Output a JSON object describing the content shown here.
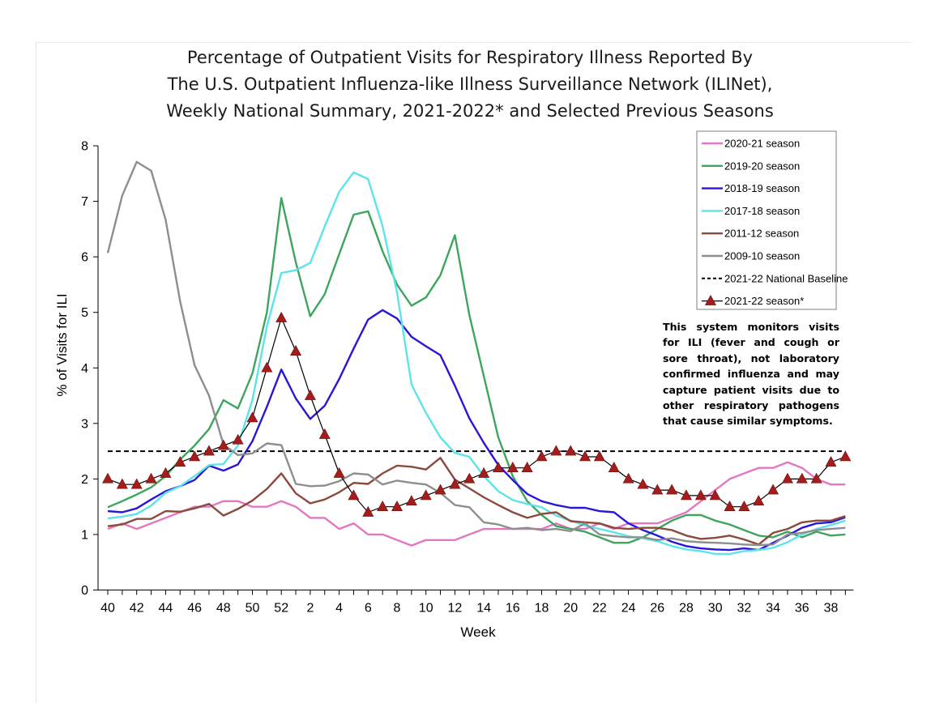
{
  "chart_data": {
    "type": "line",
    "title": [
      "Percentage of Outpatient Visits for Respiratory Illness Reported By",
      "The U.S. Outpatient Influenza-like Illness Surveillance Network (ILINet),",
      "Weekly National Summary, 2021-2022* and Selected Previous Seasons"
    ],
    "xlabel": "Week",
    "ylabel": "% of Visits for ILI",
    "ylim": [
      0,
      8
    ],
    "yticks": [
      "0",
      "1",
      "2",
      "3",
      "4",
      "5",
      "6",
      "7",
      "8"
    ],
    "x": [
      40,
      41,
      42,
      43,
      44,
      45,
      46,
      47,
      48,
      49,
      50,
      51,
      52,
      1,
      2,
      3,
      4,
      5,
      6,
      7,
      8,
      9,
      10,
      11,
      12,
      13,
      14,
      15,
      16,
      17,
      18,
      19,
      20,
      21,
      22,
      23,
      24,
      25,
      26,
      27,
      28,
      29,
      30,
      31,
      32,
      33,
      34,
      35,
      36,
      37,
      38,
      39
    ],
    "xtick_labels": [
      "40",
      "42",
      "44",
      "46",
      "48",
      "50",
      "52",
      "2",
      "4",
      "6",
      "8",
      "10",
      "12",
      "14",
      "16",
      "18",
      "20",
      "22",
      "24",
      "26",
      "28",
      "30",
      "32",
      "34",
      "36",
      "38"
    ],
    "baseline": {
      "name": "2021-22 National Baseline",
      "value": 2.5,
      "color": "#000000"
    },
    "series": [
      {
        "name": "2020-21 season",
        "color": "#e377c2",
        "marker": "none",
        "values": [
          1.1,
          1.2,
          1.1,
          1.2,
          1.3,
          1.4,
          1.5,
          1.5,
          1.6,
          1.6,
          1.5,
          1.5,
          1.6,
          1.5,
          1.3,
          1.3,
          1.1,
          1.2,
          1.0,
          1.0,
          0.9,
          0.8,
          0.9,
          0.9,
          0.9,
          1.0,
          1.1,
          1.1,
          1.1,
          1.1,
          1.1,
          1.2,
          1.1,
          1.1,
          1.2,
          1.1,
          1.2,
          1.2,
          1.2,
          1.3,
          1.4,
          1.6,
          1.8,
          2.0,
          2.1,
          2.2,
          2.2,
          2.3,
          2.2,
          2.0,
          1.9,
          1.9
        ]
      },
      {
        "name": "2019-20 season",
        "color": "#3ea55d",
        "marker": "none",
        "values": [
          1.49,
          1.6,
          1.72,
          1.85,
          2.05,
          2.35,
          2.6,
          2.9,
          3.42,
          3.27,
          3.9,
          5.0,
          7.06,
          5.9,
          4.93,
          5.33,
          6.05,
          6.76,
          6.82,
          6.1,
          5.5,
          5.12,
          5.27,
          5.67,
          6.39,
          4.95,
          3.85,
          2.75,
          2.05,
          1.6,
          1.35,
          1.15,
          1.1,
          1.05,
          0.95,
          0.85,
          0.85,
          0.95,
          1.1,
          1.25,
          1.35,
          1.35,
          1.25,
          1.18,
          1.08,
          0.98,
          0.95,
          1.05,
          0.95,
          1.05,
          0.98,
          1.0
        ]
      },
      {
        "name": "2018-19 season",
        "color": "#2a16d9",
        "marker": "none",
        "values": [
          1.42,
          1.4,
          1.47,
          1.63,
          1.78,
          1.87,
          1.98,
          2.24,
          2.15,
          2.26,
          2.68,
          3.3,
          3.97,
          3.45,
          3.08,
          3.32,
          3.8,
          4.35,
          4.87,
          5.04,
          4.89,
          4.56,
          4.39,
          4.23,
          3.68,
          3.09,
          2.65,
          2.25,
          1.98,
          1.73,
          1.6,
          1.53,
          1.48,
          1.48,
          1.42,
          1.4,
          1.2,
          1.08,
          0.98,
          0.87,
          0.79,
          0.75,
          0.73,
          0.72,
          0.75,
          0.72,
          0.85,
          0.98,
          1.12,
          1.2,
          1.22,
          1.31
        ]
      },
      {
        "name": "2017-18 season",
        "color": "#5de4ea",
        "marker": "none",
        "values": [
          1.29,
          1.32,
          1.37,
          1.52,
          1.75,
          1.87,
          2.05,
          2.25,
          2.27,
          2.6,
          3.42,
          4.75,
          5.71,
          5.76,
          5.89,
          6.55,
          7.17,
          7.52,
          7.4,
          6.55,
          5.36,
          3.7,
          3.19,
          2.75,
          2.47,
          2.4,
          2.05,
          1.78,
          1.62,
          1.55,
          1.49,
          1.34,
          1.25,
          1.16,
          1.1,
          1.04,
          0.97,
          0.93,
          0.88,
          0.79,
          0.73,
          0.7,
          0.65,
          0.65,
          0.7,
          0.72,
          0.76,
          0.86,
          1.0,
          1.1,
          1.17,
          1.25
        ]
      },
      {
        "name": "2011-12 season",
        "color": "#8a4a3d",
        "marker": "none",
        "values": [
          1.15,
          1.18,
          1.28,
          1.28,
          1.42,
          1.41,
          1.47,
          1.55,
          1.34,
          1.46,
          1.61,
          1.82,
          2.1,
          1.74,
          1.56,
          1.63,
          1.76,
          1.93,
          1.91,
          2.1,
          2.24,
          2.22,
          2.17,
          2.38,
          1.99,
          1.83,
          1.67,
          1.53,
          1.4,
          1.3,
          1.37,
          1.4,
          1.24,
          1.22,
          1.2,
          1.12,
          1.1,
          1.12,
          1.12,
          1.08,
          0.98,
          0.92,
          0.94,
          0.98,
          0.91,
          0.82,
          1.03,
          1.1,
          1.22,
          1.25,
          1.25,
          1.33
        ]
      },
      {
        "name": "2009-10 season",
        "color": "#8e8e8e",
        "marker": "none",
        "values": [
          6.07,
          7.1,
          7.71,
          7.55,
          6.67,
          5.2,
          4.05,
          3.5,
          2.62,
          2.43,
          2.46,
          2.64,
          2.61,
          1.91,
          1.87,
          1.88,
          1.96,
          2.1,
          2.08,
          1.9,
          1.97,
          1.93,
          1.9,
          1.75,
          1.53,
          1.49,
          1.22,
          1.18,
          1.1,
          1.12,
          1.08,
          1.1,
          1.06,
          1.2,
          1.0,
          0.97,
          0.95,
          0.95,
          0.9,
          0.93,
          0.88,
          0.86,
          0.85,
          0.84,
          0.82,
          0.81,
          0.82,
          1.0,
          1.03,
          1.08,
          1.1,
          1.12
        ]
      },
      {
        "name": "2021-22 season*",
        "color": "#a31d1d",
        "marker": "triangle",
        "line_color": "#000000",
        "values": [
          2.0,
          1.9,
          1.9,
          2.0,
          2.1,
          2.3,
          2.4,
          2.5,
          2.6,
          2.7,
          3.1,
          4.0,
          4.9,
          4.3,
          3.5,
          2.8,
          2.1,
          1.7,
          1.4,
          1.5,
          1.5,
          1.6,
          1.7,
          1.8,
          1.9,
          2.0,
          2.1,
          2.2,
          2.2,
          2.2,
          2.4,
          2.5,
          2.5,
          2.4,
          2.4,
          2.2,
          2.0,
          1.9,
          1.8,
          1.8,
          1.7,
          1.7,
          1.7,
          1.5,
          1.5,
          1.6,
          1.8,
          2.0,
          2.0,
          2.0,
          2.3,
          2.4
        ]
      }
    ],
    "legend_position": "top-right",
    "note": "This system monitors visits for ILI (fever and cough or sore throat), not laboratory confirmed influenza and may capture patient visits due to other respiratory pathogens that cause similar symptoms."
  }
}
